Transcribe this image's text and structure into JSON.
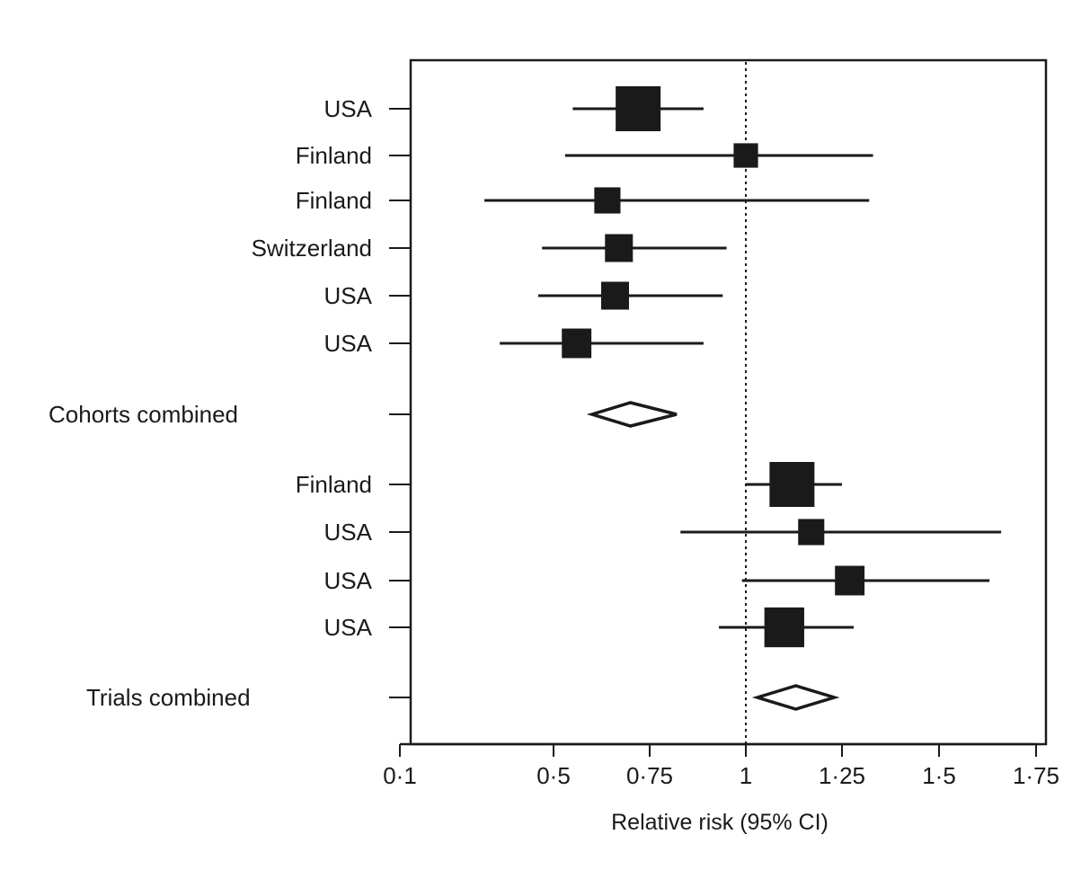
{
  "chart_data": {
    "type": "forest",
    "xlabel": "Relative risk (95% CI)",
    "x_ticks": [
      {
        "value": 0.1,
        "label": "0·1"
      },
      {
        "value": 0.5,
        "label": "0·5"
      },
      {
        "value": 0.75,
        "label": "0·75"
      },
      {
        "value": 1.0,
        "label": "1"
      },
      {
        "value": 1.25,
        "label": "1·25"
      },
      {
        "value": 1.5,
        "label": "1·5"
      },
      {
        "value": 1.75,
        "label": "1·75"
      }
    ],
    "xlim": [
      0.1,
      1.75
    ],
    "reference_line": 1.0,
    "rows": [
      {
        "label": "USA",
        "kind": "study",
        "estimate": 0.72,
        "lower": 0.55,
        "upper": 0.89,
        "weight": 1.0
      },
      {
        "label": "Finland",
        "kind": "study",
        "estimate": 1.0,
        "lower": 0.53,
        "upper": 1.33,
        "weight": 0.4
      },
      {
        "label": "Finland",
        "kind": "study",
        "estimate": 0.64,
        "lower": 0.32,
        "upper": 1.32,
        "weight": 0.45
      },
      {
        "label": "Switzerland",
        "kind": "study",
        "estimate": 0.67,
        "lower": 0.47,
        "upper": 0.95,
        "weight": 0.5
      },
      {
        "label": "USA",
        "kind": "study",
        "estimate": 0.66,
        "lower": 0.46,
        "upper": 0.94,
        "weight": 0.5
      },
      {
        "label": "USA",
        "kind": "study",
        "estimate": 0.56,
        "lower": 0.36,
        "upper": 0.89,
        "weight": 0.55
      },
      {
        "label": "Cohorts combined",
        "kind": "pooled",
        "estimate": 0.7,
        "lower": 0.6,
        "upper": 0.82
      },
      {
        "label": "Finland",
        "kind": "study",
        "estimate": 1.12,
        "lower": 1.0,
        "upper": 1.25,
        "weight": 1.0
      },
      {
        "label": "USA",
        "kind": "study",
        "estimate": 1.17,
        "lower": 0.83,
        "upper": 1.66,
        "weight": 0.45
      },
      {
        "label": "USA",
        "kind": "study",
        "estimate": 1.27,
        "lower": 0.99,
        "upper": 1.63,
        "weight": 0.55
      },
      {
        "label": "USA",
        "kind": "study",
        "estimate": 1.1,
        "lower": 0.93,
        "upper": 1.28,
        "weight": 0.85
      },
      {
        "label": "Trials combined",
        "kind": "pooled",
        "estimate": 1.13,
        "lower": 1.03,
        "upper": 1.23
      }
    ],
    "grid": false,
    "colors": {
      "marker": "#1a1a1a",
      "line": "#1a1a1a",
      "frame": "#1a1a1a",
      "background": "#ffffff"
    }
  }
}
